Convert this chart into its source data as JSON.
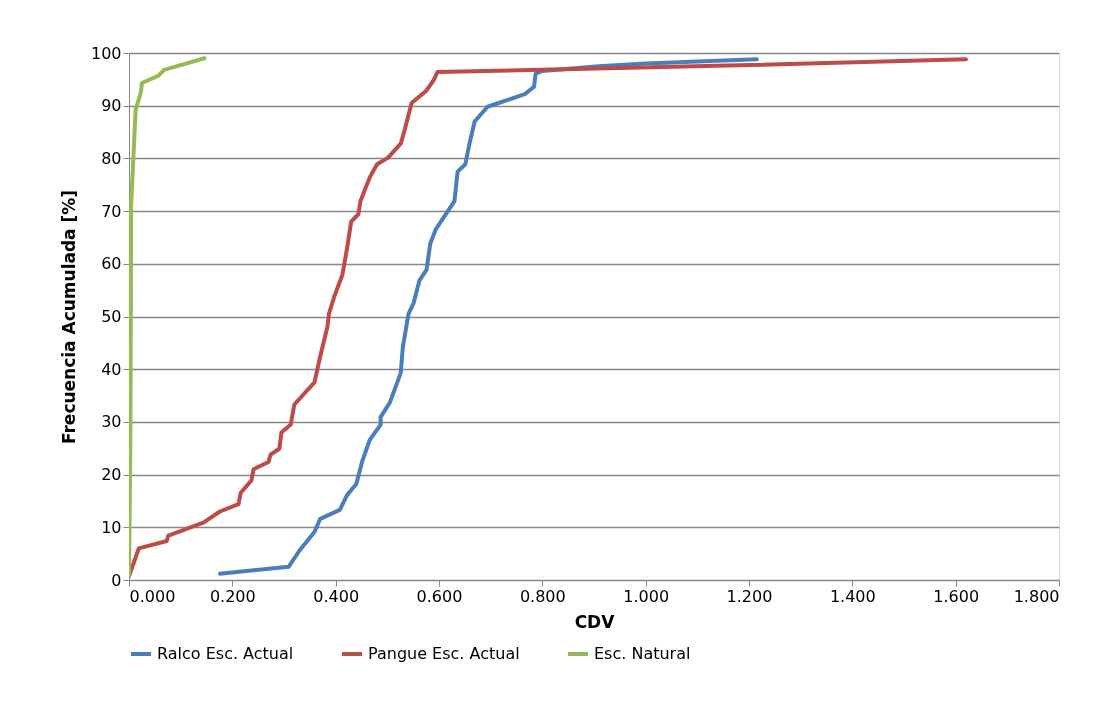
{
  "chart_data": {
    "type": "line",
    "xlabel": "CDV",
    "ylabel": "Frecuencia Acumulada [%]",
    "xlim": [
      0,
      1.8
    ],
    "ylim": [
      0,
      100
    ],
    "xticks": [
      {
        "value": 0,
        "label": "0.000"
      },
      {
        "value": 0.2,
        "label": "0.200"
      },
      {
        "value": 0.4,
        "label": "0.400"
      },
      {
        "value": 0.6,
        "label": "0.600"
      },
      {
        "value": 0.8,
        "label": "0.800"
      },
      {
        "value": 1.0,
        "label": "1.000"
      },
      {
        "value": 1.2,
        "label": "1.200"
      },
      {
        "value": 1.4,
        "label": "1.400"
      },
      {
        "value": 1.6,
        "label": "1.600"
      },
      {
        "value": 1.8,
        "label": "1.800"
      }
    ],
    "yticks": [
      0,
      10,
      20,
      30,
      40,
      50,
      60,
      70,
      80,
      90,
      100
    ],
    "grid": "y",
    "legend": "bottom",
    "marker": "none",
    "line_style": "solid",
    "series": [
      {
        "name": "Ralco Esc. Actual",
        "color": "#4a7ebb",
        "x": [
          0.176,
          0.309,
          0.33,
          0.359,
          0.37,
          0.408,
          0.422,
          0.44,
          0.451,
          0.466,
          0.487,
          0.487,
          0.505,
          0.526,
          0.53,
          0.541,
          0.551,
          0.562,
          0.576,
          0.583,
          0.594,
          0.63,
          0.636,
          0.651,
          0.659,
          0.669,
          0.694,
          0.766,
          0.784,
          0.787,
          0.8,
          0.909,
          1.0,
          1.215
        ],
        "values": [
          1.2,
          2.5,
          5.6,
          9.1,
          11.6,
          13.3,
          16.1,
          18.2,
          22.4,
          26.6,
          29.5,
          30.9,
          33.7,
          39.3,
          44.2,
          50.5,
          52.6,
          56.8,
          58.9,
          63.8,
          66.6,
          71.9,
          77.5,
          78.9,
          82.8,
          87.0,
          89.8,
          92.2,
          93.6,
          96.1,
          96.6,
          97.5,
          98.0,
          98.8
        ]
      },
      {
        "name": "Pangue Esc. Actual",
        "color": "#be4b48",
        "x": [
          0.0,
          0.019,
          0.073,
          0.076,
          0.144,
          0.176,
          0.212,
          0.216,
          0.237,
          0.241,
          0.27,
          0.274,
          0.291,
          0.295,
          0.313,
          0.32,
          0.359,
          0.37,
          0.384,
          0.387,
          0.398,
          0.413,
          0.423,
          0.43,
          0.444,
          0.448,
          0.466,
          0.48,
          0.501,
          0.526,
          0.533,
          0.547,
          0.576,
          0.59,
          0.597,
          0.8,
          1.2,
          1.62
        ],
        "values": [
          0.7,
          6.0,
          7.4,
          8.4,
          10.9,
          13.0,
          14.4,
          16.5,
          18.9,
          21.0,
          22.4,
          23.8,
          24.9,
          28.0,
          29.5,
          33.3,
          37.5,
          42.4,
          48.0,
          50.5,
          54.0,
          57.9,
          63.5,
          68.0,
          69.4,
          71.9,
          76.4,
          78.9,
          80.1,
          82.8,
          85.2,
          90.5,
          92.9,
          94.9,
          96.4,
          96.8,
          97.7,
          98.8
        ]
      },
      {
        "name": "Esc. Natural",
        "color": "#98b954",
        "x": [
          0.0,
          0.0025,
          0.0036,
          0.004,
          0.008,
          0.011,
          0.013,
          0.019,
          0.023,
          0.025,
          0.057,
          0.068,
          0.146
        ],
        "values": [
          0.7,
          25.0,
          50.0,
          70.8,
          79.2,
          85.5,
          89.4,
          91.2,
          92.6,
          94.3,
          95.7,
          96.8,
          99.0
        ]
      }
    ]
  }
}
